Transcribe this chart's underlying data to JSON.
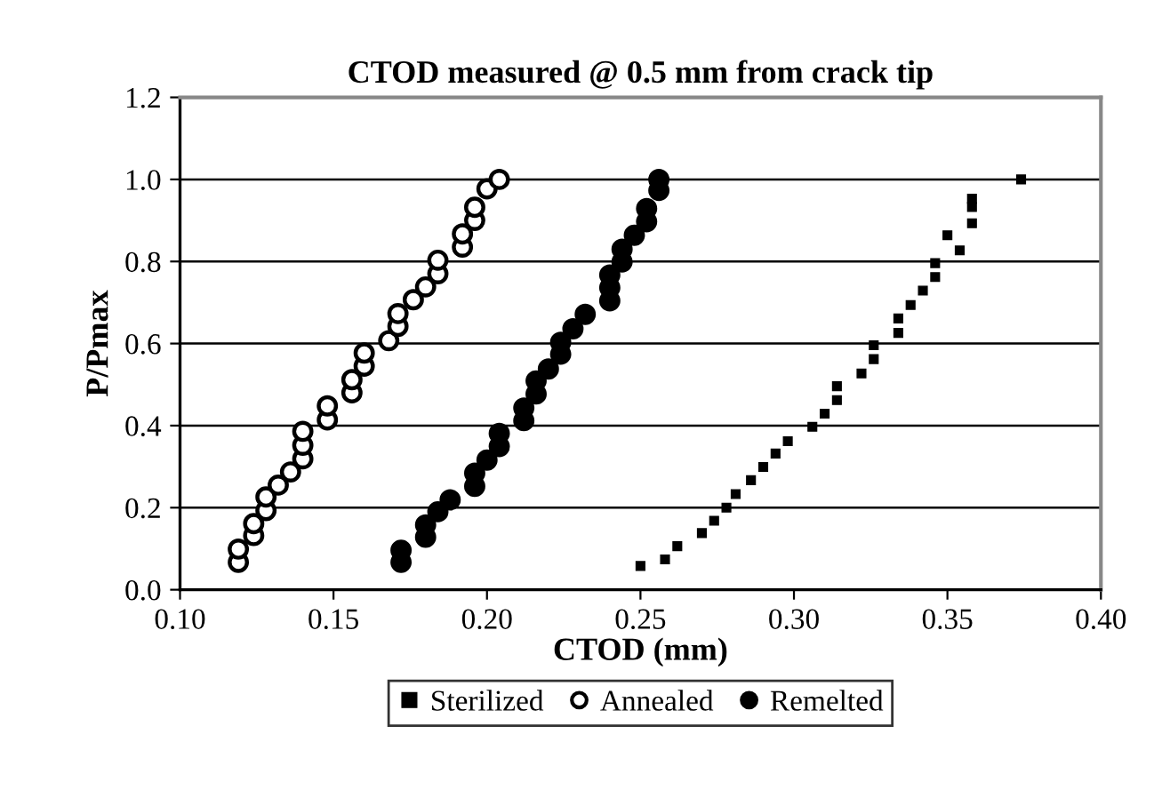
{
  "chart_data": {
    "type": "scatter",
    "title": "CTOD measured @ 0.5 mm from crack tip",
    "xlabel": "CTOD (mm)",
    "ylabel": "P/Pmax",
    "xlim": [
      0.1,
      0.4
    ],
    "xticks": [
      {
        "value": 0.1,
        "label": "0.10"
      },
      {
        "value": 0.15,
        "label": "0.15"
      },
      {
        "value": 0.2,
        "label": "0.20"
      },
      {
        "value": 0.25,
        "label": "0.25"
      },
      {
        "value": 0.3,
        "label": "0.30"
      },
      {
        "value": 0.35,
        "label": "0.35"
      },
      {
        "value": 0.4,
        "label": "0.40"
      }
    ],
    "ylim": [
      0,
      1.2
    ],
    "yticks": [
      {
        "value": 0,
        "label": "0.0"
      },
      {
        "value": 0.2,
        "label": "0.2"
      },
      {
        "value": 0.4,
        "label": "0.4"
      },
      {
        "value": 0.6,
        "label": "0.6"
      },
      {
        "value": 0.8,
        "label": "0.8"
      },
      {
        "value": 1.0,
        "label": "1.0"
      },
      {
        "value": 1.2,
        "label": "1.2"
      }
    ],
    "grid": "y",
    "legend": "bottom",
    "series": [
      {
        "name": "Sterilized",
        "color": "#000000",
        "marker": "square",
        "x": [
          0.25,
          0.258,
          0.262,
          0.27,
          0.274,
          0.278,
          0.281,
          0.286,
          0.29,
          0.294,
          0.298,
          0.306,
          0.31,
          0.314,
          0.314,
          0.322,
          0.326,
          0.326,
          0.334,
          0.334,
          0.338,
          0.342,
          0.346,
          0.346,
          0.354,
          0.35,
          0.358,
          0.358,
          0.358,
          0.374
        ],
        "values": [
          0.058,
          0.074,
          0.106,
          0.138,
          0.168,
          0.2,
          0.233,
          0.267,
          0.299,
          0.332,
          0.362,
          0.397,
          0.429,
          0.462,
          0.496,
          0.527,
          0.562,
          0.596,
          0.626,
          0.661,
          0.694,
          0.729,
          0.762,
          0.796,
          0.827,
          0.864,
          0.893,
          0.933,
          0.953,
          1.0
        ]
      },
      {
        "name": "Annealed",
        "color": "#ffffff",
        "marker": "circle",
        "x": [
          0.119,
          0.119,
          0.124,
          0.124,
          0.128,
          0.128,
          0.132,
          0.136,
          0.14,
          0.14,
          0.14,
          0.148,
          0.148,
          0.156,
          0.156,
          0.16,
          0.16,
          0.168,
          0.171,
          0.171,
          0.176,
          0.18,
          0.184,
          0.184,
          0.192,
          0.192,
          0.196,
          0.196,
          0.2,
          0.204
        ],
        "values": [
          0.067,
          0.099,
          0.132,
          0.161,
          0.193,
          0.226,
          0.255,
          0.287,
          0.319,
          0.352,
          0.386,
          0.414,
          0.448,
          0.48,
          0.512,
          0.545,
          0.577,
          0.607,
          0.642,
          0.673,
          0.707,
          0.738,
          0.77,
          0.803,
          0.835,
          0.867,
          0.9,
          0.932,
          0.977,
          1.0
        ]
      },
      {
        "name": "Remelted",
        "color": "#000000",
        "marker": "circle",
        "x": [
          0.172,
          0.172,
          0.18,
          0.18,
          0.184,
          0.188,
          0.196,
          0.196,
          0.2,
          0.204,
          0.204,
          0.212,
          0.212,
          0.216,
          0.216,
          0.22,
          0.224,
          0.224,
          0.228,
          0.232,
          0.24,
          0.24,
          0.24,
          0.244,
          0.244,
          0.248,
          0.252,
          0.252,
          0.256,
          0.256
        ],
        "values": [
          0.067,
          0.096,
          0.128,
          0.158,
          0.19,
          0.219,
          0.252,
          0.284,
          0.316,
          0.349,
          0.381,
          0.412,
          0.443,
          0.477,
          0.509,
          0.538,
          0.574,
          0.603,
          0.636,
          0.671,
          0.704,
          0.736,
          0.767,
          0.799,
          0.83,
          0.864,
          0.897,
          0.929,
          0.973,
          1.0
        ]
      }
    ]
  }
}
